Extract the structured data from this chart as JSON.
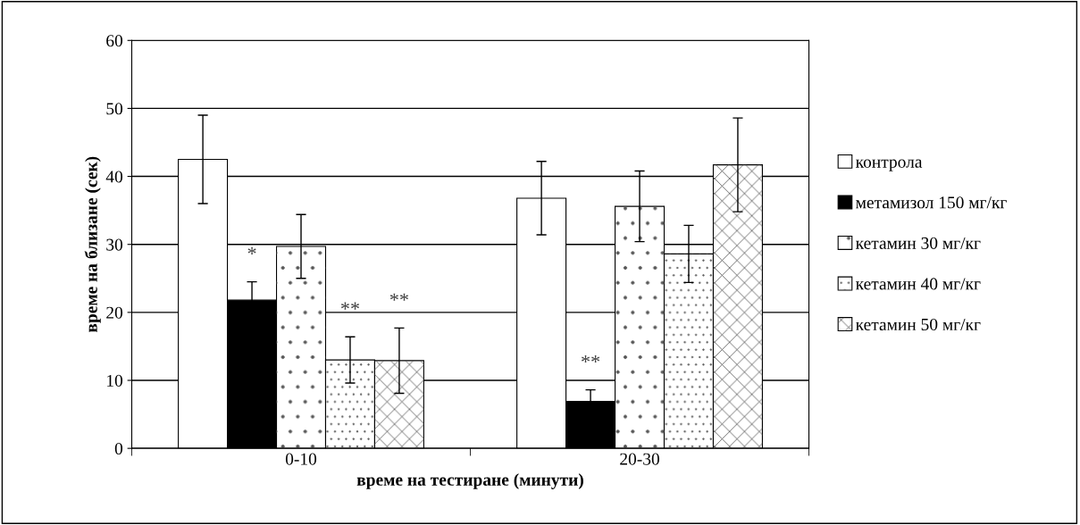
{
  "chart_data": {
    "type": "bar",
    "xlabel": "време на тестиране (минути)",
    "ylabel": "време на близане (сек)",
    "categories": [
      "0-10",
      "20-30"
    ],
    "series": [
      {
        "name": "контрола",
        "color": "#ffffff",
        "values": [
          42.5,
          36.8
        ],
        "errors": [
          6.5,
          5.4
        ]
      },
      {
        "name": "метамизол 150 мг/кг",
        "color": "#000000",
        "values": [
          21.8,
          6.9
        ],
        "errors": [
          2.7,
          1.7
        ],
        "value_labels": [
          "*",
          "**"
        ]
      },
      {
        "name": "кетамин 30 мг/кг",
        "color": "#ffffff",
        "values": [
          29.7,
          35.6
        ],
        "errors": [
          4.7,
          5.2
        ]
      },
      {
        "name": "кетамин 40 мг/кг",
        "color": "#ffffff",
        "values": [
          13.0,
          28.6
        ],
        "errors": [
          3.4,
          4.2
        ],
        "value_labels": [
          "**",
          null
        ]
      },
      {
        "name": "кетамин 50 мг/кг",
        "color": "#ffffff",
        "values": [
          12.9,
          41.7
        ],
        "errors": [
          4.8,
          6.9
        ],
        "value_labels": [
          "**",
          null
        ]
      }
    ],
    "ylim": [
      0,
      60
    ],
    "yticks": [
      0,
      10,
      20,
      30,
      40,
      50,
      60
    ],
    "grid": "y",
    "legend": "right"
  }
}
